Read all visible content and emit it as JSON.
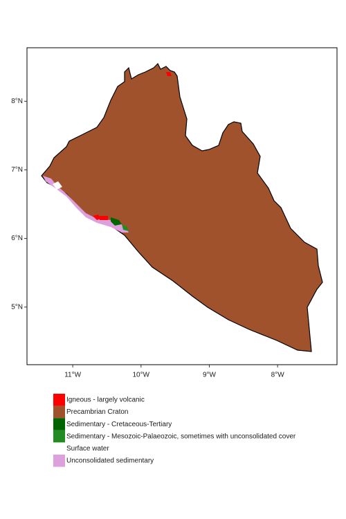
{
  "chart_data": {
    "type": "map",
    "xlim": [
      -11.67,
      -7.13
    ],
    "ylim": [
      4.16,
      8.78
    ],
    "xticks": [
      {
        "value": -11,
        "label": "11°W"
      },
      {
        "value": -10,
        "label": "10°W"
      },
      {
        "value": -9,
        "label": "9°W"
      },
      {
        "value": -8,
        "label": "8°W"
      }
    ],
    "yticks": [
      {
        "value": 5,
        "label": "5°N"
      },
      {
        "value": 6,
        "label": "6°N"
      },
      {
        "value": 7,
        "label": "7°N"
      },
      {
        "value": 8,
        "label": "8°N"
      }
    ],
    "legend": [
      {
        "name": "Igneous - largely volcanic",
        "color": "#ff0000"
      },
      {
        "name": "Precambrian Craton",
        "color": "#a0522d"
      },
      {
        "name": "Sedimentary - Cretaceous-Tertiary",
        "color": "#006400"
      },
      {
        "name": "Sedimentary - Mesozoic-Palaeozoic, sometimes with unconsolidated cover",
        "color": "#228b22"
      },
      {
        "name": "Surface water",
        "color": "#ffffff"
      },
      {
        "name": "Unconsolidated sedimentary",
        "color": "#dda0dd"
      }
    ]
  }
}
